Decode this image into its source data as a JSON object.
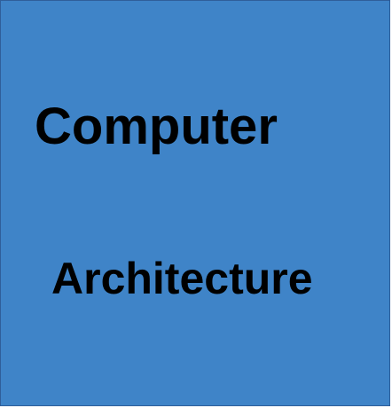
{
  "cover": {
    "line1": "Computer",
    "line2": "Architecture",
    "background_color": "#3f84c8",
    "text_color": "#000000"
  }
}
